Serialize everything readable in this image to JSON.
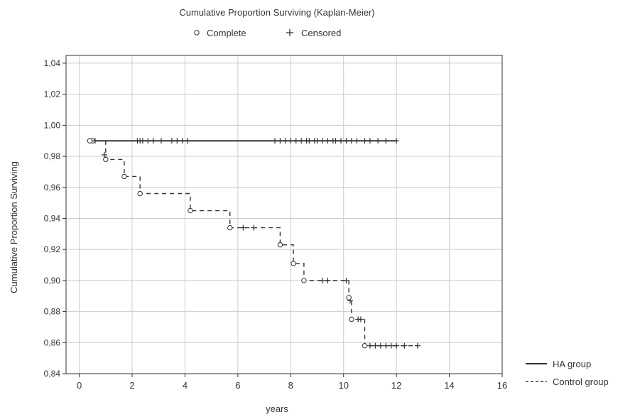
{
  "chart_data": {
    "type": "line",
    "title": "Cumulative Proportion Surviving (Kaplan-Meier)",
    "marker_legend": [
      {
        "symbol": "circle",
        "label": "Complete"
      },
      {
        "symbol": "plus",
        "label": "Censored"
      }
    ],
    "xlabel": "years",
    "ylabel": "Cumulative Proportion Surviving",
    "xlim": [
      -0.5,
      16
    ],
    "ylim": [
      0.84,
      1.045
    ],
    "x_ticks": [
      0,
      2,
      4,
      6,
      8,
      10,
      12,
      14,
      16
    ],
    "y_ticks": [
      0.84,
      0.86,
      0.88,
      0.9,
      0.92,
      0.94,
      0.96,
      0.98,
      1.0,
      1.02,
      1.04
    ],
    "y_tick_labels": [
      "0,84",
      "0,86",
      "0,88",
      "0,90",
      "0,92",
      "0,94",
      "0,96",
      "0,98",
      "1,00",
      "1,02",
      "1,04"
    ],
    "grid": true,
    "legend_position": "bottom-right",
    "series": [
      {
        "name": "HA group",
        "line_style": "solid",
        "steps": [
          [
            0.4,
            0.99
          ],
          [
            12.0,
            0.99
          ]
        ],
        "complete": [
          0.4,
          0.5
        ],
        "censored": [
          0.6,
          2.2,
          2.3,
          2.4,
          2.6,
          2.8,
          3.1,
          3.5,
          3.7,
          3.9,
          4.1,
          7.4,
          7.6,
          7.8,
          8.0,
          8.2,
          8.4,
          8.6,
          8.7,
          8.9,
          9.0,
          9.2,
          9.4,
          9.6,
          9.7,
          9.9,
          10.1,
          10.3,
          10.5,
          10.8,
          11.0,
          11.3,
          11.6,
          12.0
        ]
      },
      {
        "name": "Control group",
        "line_style": "dashed",
        "steps": [
          [
            0.4,
            0.99
          ],
          [
            1.0,
            0.978
          ],
          [
            1.7,
            0.967
          ],
          [
            2.3,
            0.956
          ],
          [
            4.2,
            0.945
          ],
          [
            5.7,
            0.934
          ],
          [
            7.6,
            0.923
          ],
          [
            8.1,
            0.911
          ],
          [
            8.5,
            0.9
          ],
          [
            10.2,
            0.889
          ],
          [
            10.3,
            0.875
          ],
          [
            10.8,
            0.858
          ],
          [
            12.8,
            0.858
          ]
        ],
        "complete": [
          [
            0.4,
            0.99
          ],
          [
            1.0,
            0.978
          ],
          [
            1.7,
            0.967
          ],
          [
            2.3,
            0.956
          ],
          [
            4.2,
            0.945
          ],
          [
            5.7,
            0.934
          ],
          [
            7.6,
            0.923
          ],
          [
            8.1,
            0.911
          ],
          [
            8.5,
            0.9
          ],
          [
            10.2,
            0.889
          ],
          [
            10.3,
            0.875
          ],
          [
            10.8,
            0.858
          ]
        ],
        "censored": [
          [
            0.95,
            0.981
          ],
          [
            6.2,
            0.934
          ],
          [
            6.6,
            0.934
          ],
          [
            9.2,
            0.9
          ],
          [
            9.4,
            0.9
          ],
          [
            10.1,
            0.9
          ],
          [
            10.25,
            0.887
          ],
          [
            10.55,
            0.875
          ],
          [
            10.65,
            0.875
          ],
          [
            11.0,
            0.858
          ],
          [
            11.2,
            0.858
          ],
          [
            11.4,
            0.858
          ],
          [
            11.6,
            0.858
          ],
          [
            11.8,
            0.858
          ],
          [
            12.0,
            0.858
          ],
          [
            12.3,
            0.858
          ],
          [
            12.8,
            0.858
          ]
        ]
      }
    ]
  }
}
